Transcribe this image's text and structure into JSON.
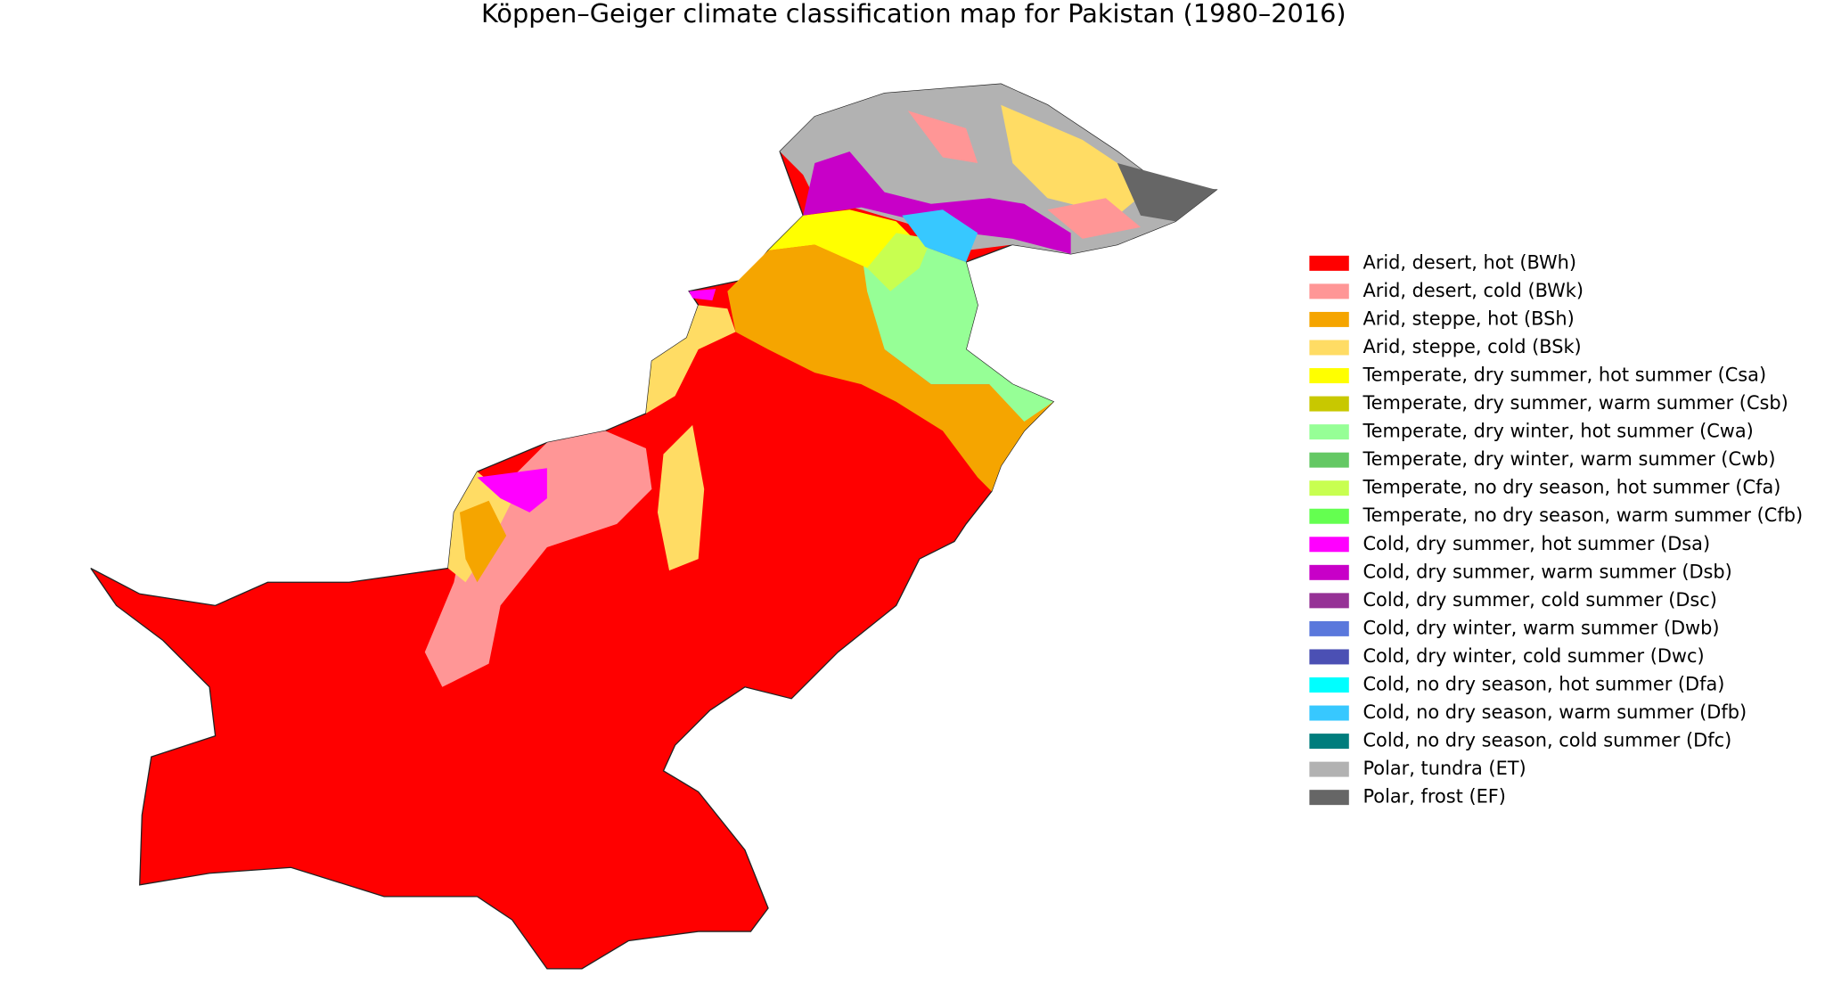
{
  "title": "Köppen–Geiger climate classification map for Pakistan (1980–2016)",
  "legend": [
    {
      "label": "Arid, desert, hot (BWh)",
      "color": "#ff0000"
    },
    {
      "label": "Arid, desert, cold (BWk)",
      "color": "#ff9696"
    },
    {
      "label": "Arid, steppe, hot (BSh)",
      "color": "#f5a500"
    },
    {
      "label": "Arid, steppe, cold (BSk)",
      "color": "#ffdc64"
    },
    {
      "label": "Temperate, dry summer, hot summer (Csa)",
      "color": "#ffff00"
    },
    {
      "label": "Temperate, dry summer, warm summer (Csb)",
      "color": "#c8c800"
    },
    {
      "label": "Temperate, dry winter, hot summer (Cwa)",
      "color": "#96ff96"
    },
    {
      "label": "Temperate, dry winter, warm summer (Cwb)",
      "color": "#64c864"
    },
    {
      "label": "Temperate, no dry season, hot summer (Cfa)",
      "color": "#c8ff50"
    },
    {
      "label": "Temperate, no dry season, warm summer (Cfb)",
      "color": "#64ff50"
    },
    {
      "label": "Cold, dry summer, hot summer (Dsa)",
      "color": "#ff00ff"
    },
    {
      "label": "Cold, dry summer, warm summer (Dsb)",
      "color": "#c800c8"
    },
    {
      "label": "Cold, dry summer, cold summer (Dsc)",
      "color": "#963296"
    },
    {
      "label": "Cold, dry winter, warm summer (Dwb)",
      "color": "#5a78dc"
    },
    {
      "label": "Cold, dry winter, cold summer (Dwc)",
      "color": "#4b50b4"
    },
    {
      "label": "Cold, no dry season, hot summer (Dfa)",
      "color": "#00ffff"
    },
    {
      "label": "Cold, no dry season, warm summer (Dfb)",
      "color": "#37c8ff"
    },
    {
      "label": "Cold, no dry season, cold summer (Dfc)",
      "color": "#007d7d"
    },
    {
      "label": "Polar, tundra (ET)",
      "color": "#b2b2b2"
    },
    {
      "label": "Polar, frost (EF)",
      "color": "#666666"
    }
  ]
}
